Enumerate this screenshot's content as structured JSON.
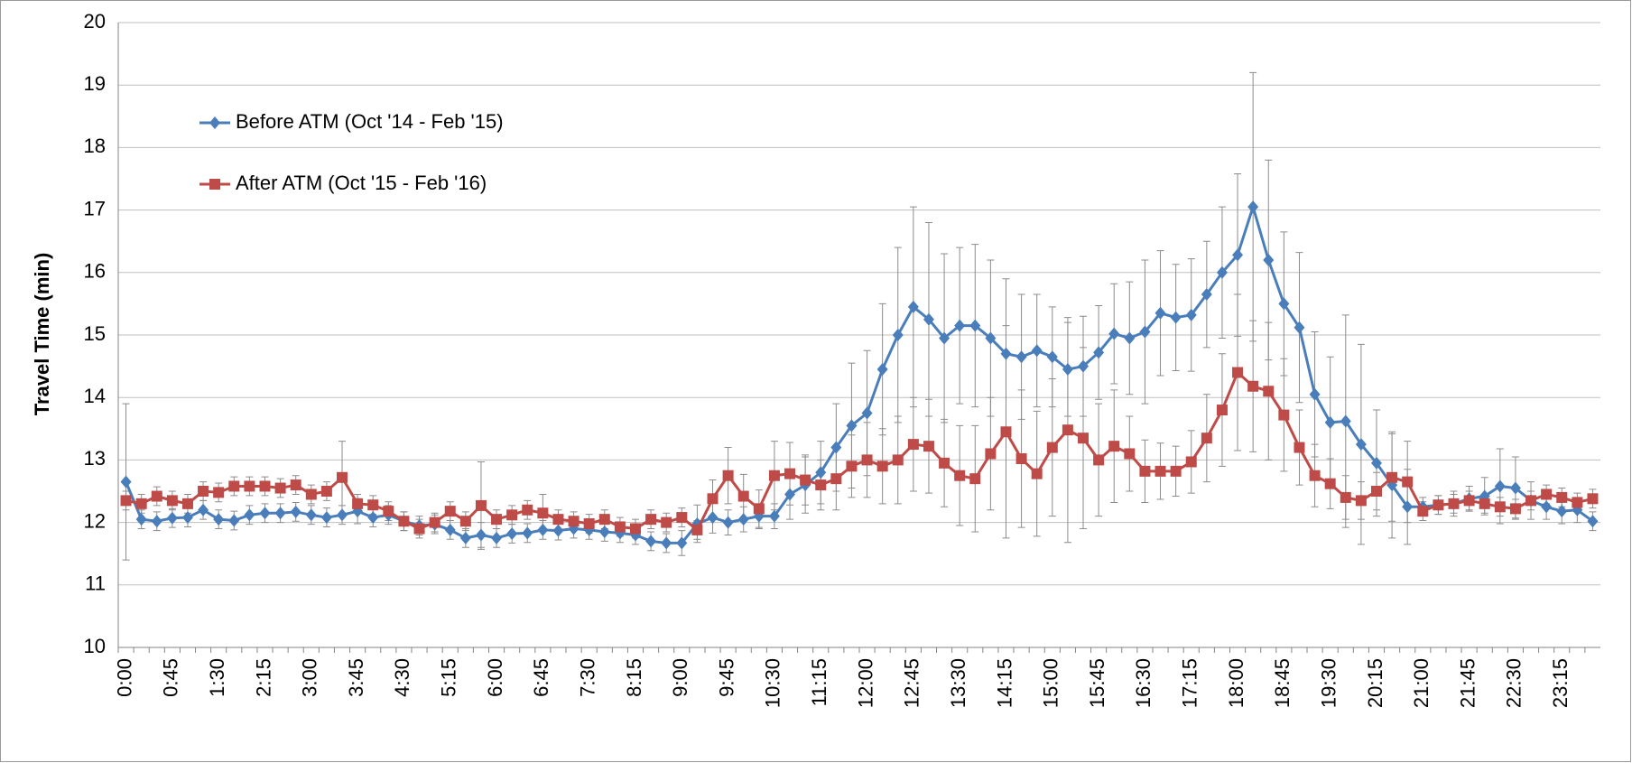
{
  "chart_data": {
    "type": "line",
    "y_label": "Travel Time (min)",
    "categories": [
      "0:00",
      null,
      null,
      "0:45",
      null,
      null,
      "1:30",
      null,
      null,
      "2:15",
      null,
      null,
      "3:00",
      null,
      null,
      "3:45",
      null,
      null,
      "4:30",
      null,
      null,
      "5:15",
      null,
      null,
      "6:00",
      null,
      null,
      "6:45",
      null,
      null,
      "7:30",
      null,
      null,
      "8:15",
      null,
      null,
      "9:00",
      null,
      null,
      "9:45",
      null,
      null,
      "10:30",
      null,
      null,
      "11:15",
      null,
      null,
      "12:00",
      null,
      null,
      "12:45",
      null,
      null,
      "13:30",
      null,
      null,
      "14:15",
      null,
      null,
      "15:00",
      null,
      null,
      "15:45",
      null,
      null,
      "16:30",
      null,
      null,
      "17:15",
      null,
      null,
      "18:00",
      null,
      null,
      "18:45",
      null,
      null,
      "19:30",
      null,
      null,
      "20:15",
      null,
      null,
      "21:00",
      null,
      null,
      "21:45",
      null,
      null,
      "22:30",
      null,
      null,
      "23:15",
      null,
      null
    ],
    "series": [
      {
        "name": "Before ATM (Oct '14 - Feb '15)",
        "color": "#4a7ebb",
        "marker": "diamond",
        "values": [
          12.65,
          12.05,
          12.02,
          12.07,
          12.08,
          12.2,
          12.05,
          12.03,
          12.12,
          12.15,
          12.15,
          12.17,
          12.12,
          12.08,
          12.12,
          12.18,
          12.08,
          12.12,
          12.02,
          11.95,
          11.97,
          11.88,
          11.75,
          11.8,
          11.75,
          11.82,
          11.83,
          11.88,
          11.87,
          11.9,
          11.88,
          11.85,
          11.83,
          11.8,
          11.7,
          11.67,
          11.67,
          11.98,
          12.08,
          12.0,
          12.05,
          12.1,
          12.1,
          12.45,
          12.6,
          12.8,
          13.2,
          13.55,
          13.75,
          14.45,
          15.0,
          15.45,
          15.25,
          14.95,
          15.15,
          15.15,
          14.95,
          14.7,
          14.65,
          14.75,
          14.65,
          14.45,
          14.5,
          14.72,
          15.02,
          14.95,
          15.05,
          15.35,
          15.28,
          15.32,
          15.65,
          16.0,
          16.28,
          17.05,
          16.2,
          15.5,
          15.12,
          14.05,
          13.6,
          13.62,
          13.25,
          12.95,
          12.6,
          12.25,
          12.25,
          12.28,
          12.3,
          12.38,
          12.42,
          12.58,
          12.55,
          12.35,
          12.25,
          12.18,
          12.2,
          12.02
        ],
        "errors": [
          1.25,
          0.15,
          0.15,
          0.15,
          0.15,
          0.15,
          0.15,
          0.15,
          0.15,
          0.15,
          0.15,
          0.15,
          0.15,
          0.15,
          0.15,
          0.2,
          0.15,
          0.15,
          0.15,
          0.15,
          0.15,
          0.15,
          0.15,
          0.2,
          0.15,
          0.15,
          0.15,
          0.15,
          0.15,
          0.15,
          0.15,
          0.15,
          0.15,
          0.15,
          0.15,
          0.15,
          0.2,
          0.3,
          0.25,
          0.2,
          0.2,
          0.2,
          0.2,
          0.4,
          0.45,
          0.5,
          0.7,
          1.0,
          1.0,
          1.05,
          1.4,
          1.6,
          1.55,
          1.35,
          1.25,
          1.3,
          1.25,
          1.2,
          1.0,
          0.9,
          0.8,
          0.75,
          0.8,
          0.75,
          0.8,
          0.9,
          1.15,
          1.0,
          0.85,
          0.9,
          0.85,
          1.05,
          1.3,
          2.15,
          1.6,
          1.15,
          1.2,
          1.0,
          1.05,
          1.7,
          1.6,
          0.85,
          0.85,
          0.6,
          0.15,
          0.15,
          0.2,
          0.2,
          0.3,
          0.6,
          0.5,
          0.3,
          0.2,
          0.2,
          0.2,
          0.15
        ]
      },
      {
        "name": "After ATM (Oct '15 - Feb '16)",
        "color": "#be4b48",
        "marker": "square",
        "values": [
          12.35,
          12.3,
          12.42,
          12.35,
          12.3,
          12.5,
          12.48,
          12.58,
          12.58,
          12.58,
          12.55,
          12.6,
          12.45,
          12.5,
          12.72,
          12.3,
          12.28,
          12.18,
          12.02,
          11.9,
          12.0,
          12.18,
          12.02,
          12.27,
          12.05,
          12.12,
          12.2,
          12.15,
          12.05,
          12.02,
          11.98,
          12.05,
          11.93,
          11.9,
          12.05,
          12.0,
          12.08,
          11.88,
          12.38,
          12.75,
          12.42,
          12.22,
          12.75,
          12.78,
          12.68,
          12.6,
          12.7,
          12.9,
          13.0,
          12.9,
          13.0,
          13.25,
          13.22,
          12.95,
          12.75,
          12.7,
          13.1,
          13.45,
          13.02,
          12.78,
          13.2,
          13.48,
          13.35,
          13.0,
          13.22,
          13.1,
          12.82,
          12.82,
          12.82,
          12.97,
          13.35,
          13.8,
          14.4,
          14.18,
          14.1,
          13.72,
          13.2,
          12.75,
          12.62,
          12.4,
          12.35,
          12.5,
          12.72,
          12.65,
          12.18,
          12.28,
          12.3,
          12.35,
          12.3,
          12.25,
          12.22,
          12.35,
          12.45,
          12.4,
          12.32,
          12.38
        ],
        "errors": [
          0.15,
          0.15,
          0.15,
          0.15,
          0.15,
          0.15,
          0.15,
          0.15,
          0.15,
          0.15,
          0.15,
          0.15,
          0.15,
          0.15,
          0.58,
          0.15,
          0.15,
          0.15,
          0.15,
          0.15,
          0.15,
          0.15,
          0.15,
          0.7,
          0.15,
          0.15,
          0.15,
          0.3,
          0.15,
          0.15,
          0.15,
          0.15,
          0.15,
          0.15,
          0.15,
          0.15,
          0.15,
          0.15,
          0.3,
          0.45,
          0.35,
          0.3,
          0.55,
          0.5,
          0.4,
          0.4,
          0.5,
          0.5,
          0.6,
          0.6,
          0.7,
          0.75,
          0.75,
          0.7,
          0.8,
          0.85,
          0.9,
          1.7,
          1.1,
          1.0,
          1.1,
          1.8,
          1.45,
          0.9,
          0.9,
          0.6,
          0.5,
          0.45,
          0.4,
          0.5,
          0.7,
          0.9,
          1.25,
          1.05,
          1.1,
          0.9,
          0.6,
          0.5,
          0.4,
          0.35,
          0.3,
          0.3,
          0.7,
          0.65,
          0.15,
          0.15,
          0.15,
          0.15,
          0.15,
          0.15,
          0.15,
          0.15,
          0.15,
          0.15,
          0.15,
          0.15
        ]
      }
    ],
    "ylim": [
      10,
      20
    ],
    "yticks": [
      10,
      11,
      12,
      13,
      14,
      15,
      16,
      17,
      18,
      19,
      20
    ],
    "grid": true,
    "legend": "upper left"
  }
}
